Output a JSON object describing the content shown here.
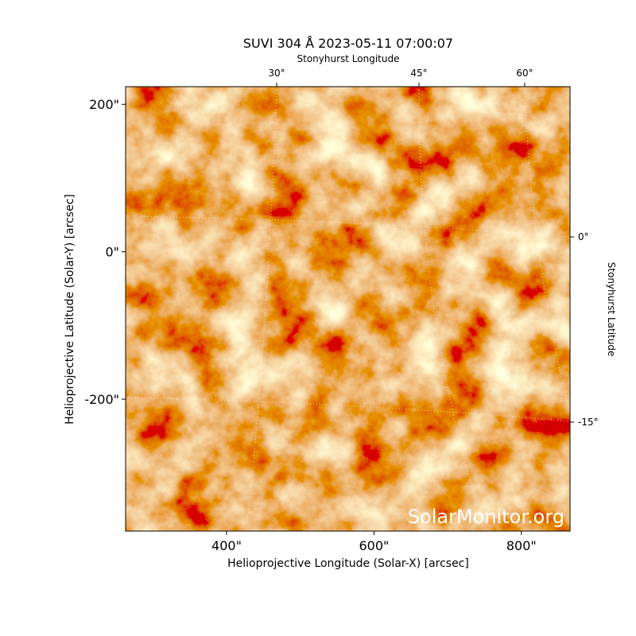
{
  "chart_data": {
    "type": "image",
    "title": "SUVI 304 Å 2023-05-11 07:00:07",
    "xlabel": "Helioprojective Longitude (Solar-X) [arcsec]",
    "ylabel": "Helioprojective Latitude (Solar-Y) [arcsec]",
    "xlim": [
      263,
      866
    ],
    "ylim": [
      -379,
      224
    ],
    "xticks": [
      {
        "value": 400,
        "label": "400\""
      },
      {
        "value": 600,
        "label": "600\""
      },
      {
        "value": 800,
        "label": "800\""
      }
    ],
    "yticks": [
      {
        "value": 200,
        "label": "200\""
      },
      {
        "value": 0,
        "label": "0\""
      },
      {
        "value": -200,
        "label": "-200\""
      }
    ],
    "top_axis": {
      "label": "Stonyhurst Longitude",
      "ticks": [
        "30°",
        "45°",
        "60°"
      ]
    },
    "right_axis": {
      "label": "Stonyhurst Latitude",
      "ticks": [
        "0°",
        "-15°"
      ]
    },
    "watermark": "SolarMonitor.org"
  }
}
